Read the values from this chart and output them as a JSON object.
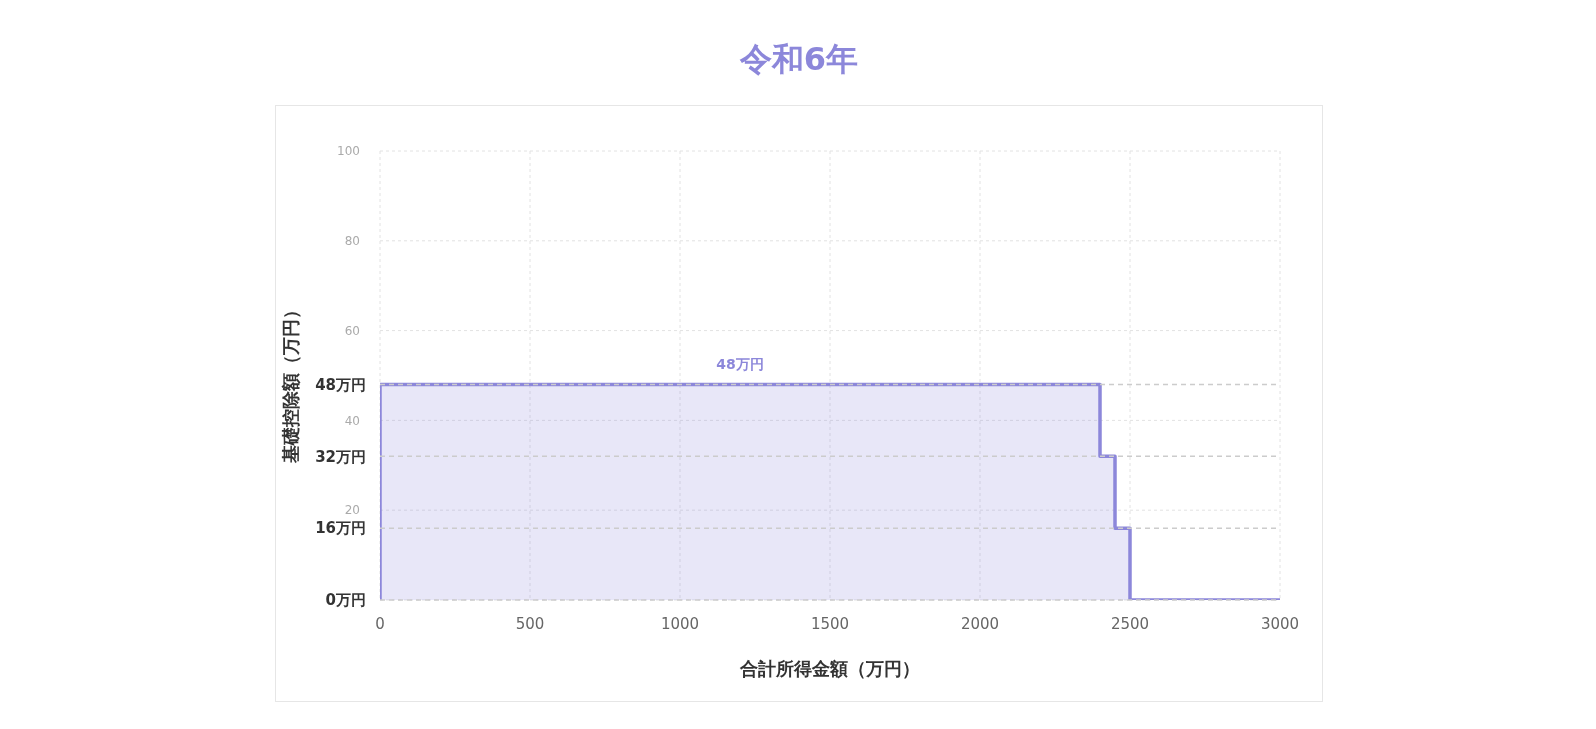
{
  "chart_data": {
    "type": "step",
    "title": "令和6年",
    "xlabel": "合計所得金額（万円）",
    "ylabel": "基礎控除額（万円）",
    "x": [
      0,
      0,
      2400,
      2450,
      2500,
      3000
    ],
    "values": [
      0,
      48,
      32,
      16,
      0,
      0
    ],
    "color": "#8c87da",
    "xlim": [
      0,
      3000
    ],
    "xticks": [
      0,
      500,
      1000,
      1500,
      2000,
      2500,
      3000
    ],
    "ylim": [
      0,
      100
    ],
    "yticks": [
      {
        "value": 0,
        "label": null
      },
      20,
      40,
      60,
      80,
      100
    ],
    "grid": true,
    "ref_lines": [
      {
        "axis": "y",
        "value": 0,
        "label": "0万円",
        "color": "#cccccc",
        "line_style": "dashed"
      },
      {
        "axis": "y",
        "value": 16,
        "label": "16万円",
        "color": "#cccccc",
        "line_style": "dashed"
      },
      {
        "axis": "y",
        "value": 32,
        "label": "32万円",
        "color": "#cccccc",
        "line_style": "dashed"
      },
      {
        "axis": "y",
        "value": 48,
        "label": "48万円",
        "color": "#cccccc",
        "line_style": "dashed"
      }
    ],
    "annotations": [
      {
        "text": "48万円",
        "x": 1200,
        "y": 48
      }
    ]
  }
}
